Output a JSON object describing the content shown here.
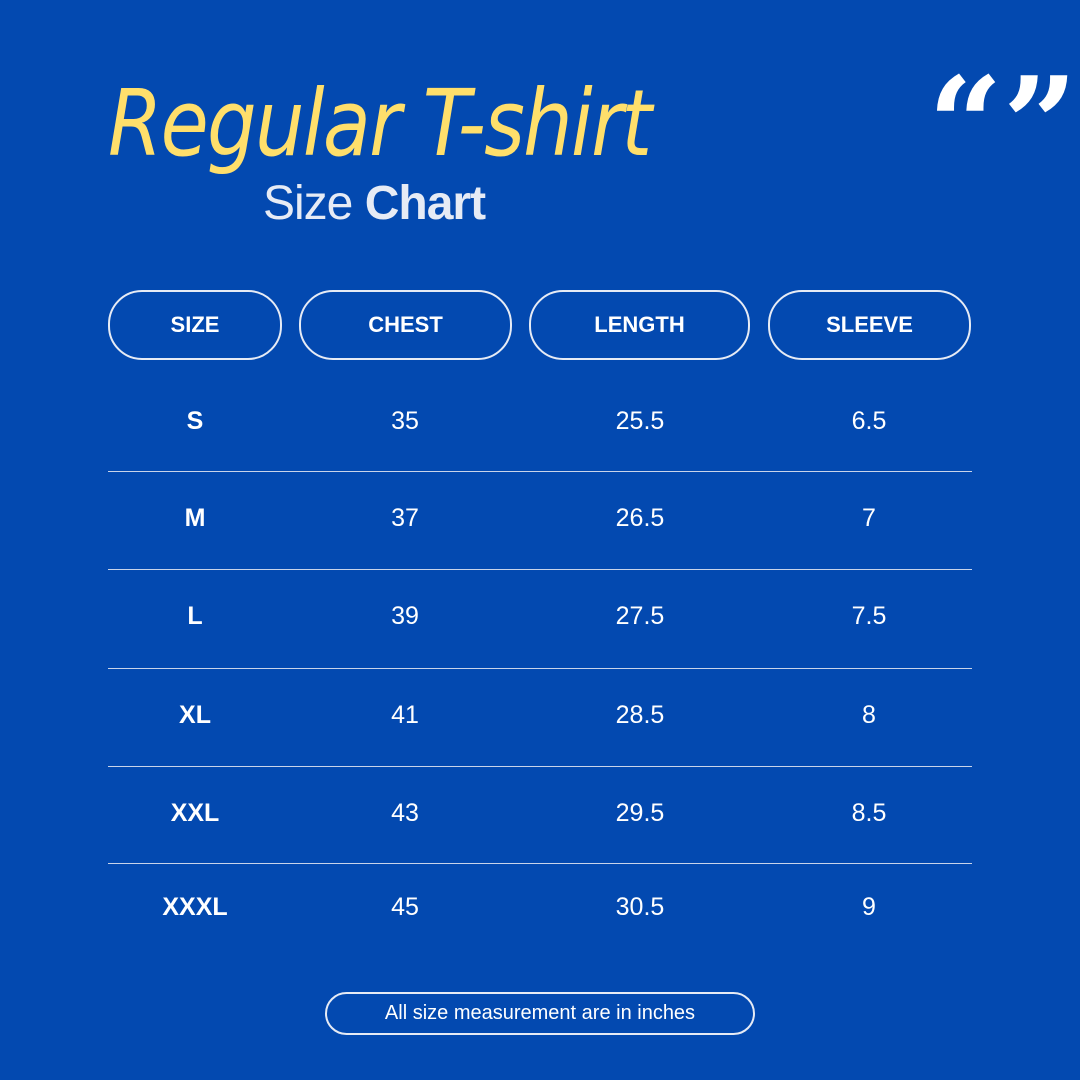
{
  "title": "Regular T-shirt",
  "subtitle": {
    "light": "Size",
    "bold": "Chart"
  },
  "quote_icon": "quotation-marks-icon",
  "colors": {
    "background": "#0349b0",
    "title": "#ffdf6b",
    "text": "#ffffff"
  },
  "table": {
    "headers": [
      "SIZE",
      "CHEST",
      "LENGTH",
      "SLEEVE"
    ],
    "rows": [
      [
        "S",
        "35",
        "25.5",
        "6.5"
      ],
      [
        "M",
        "37",
        "26.5",
        "7"
      ],
      [
        "L",
        "39",
        "27.5",
        "7.5"
      ],
      [
        "XL",
        "41",
        "28.5",
        "8"
      ],
      [
        "XXL",
        "43",
        "29.5",
        "8.5"
      ],
      [
        "XXXL",
        "45",
        "30.5",
        "9"
      ]
    ]
  },
  "footer": "All size measurement are in inches"
}
